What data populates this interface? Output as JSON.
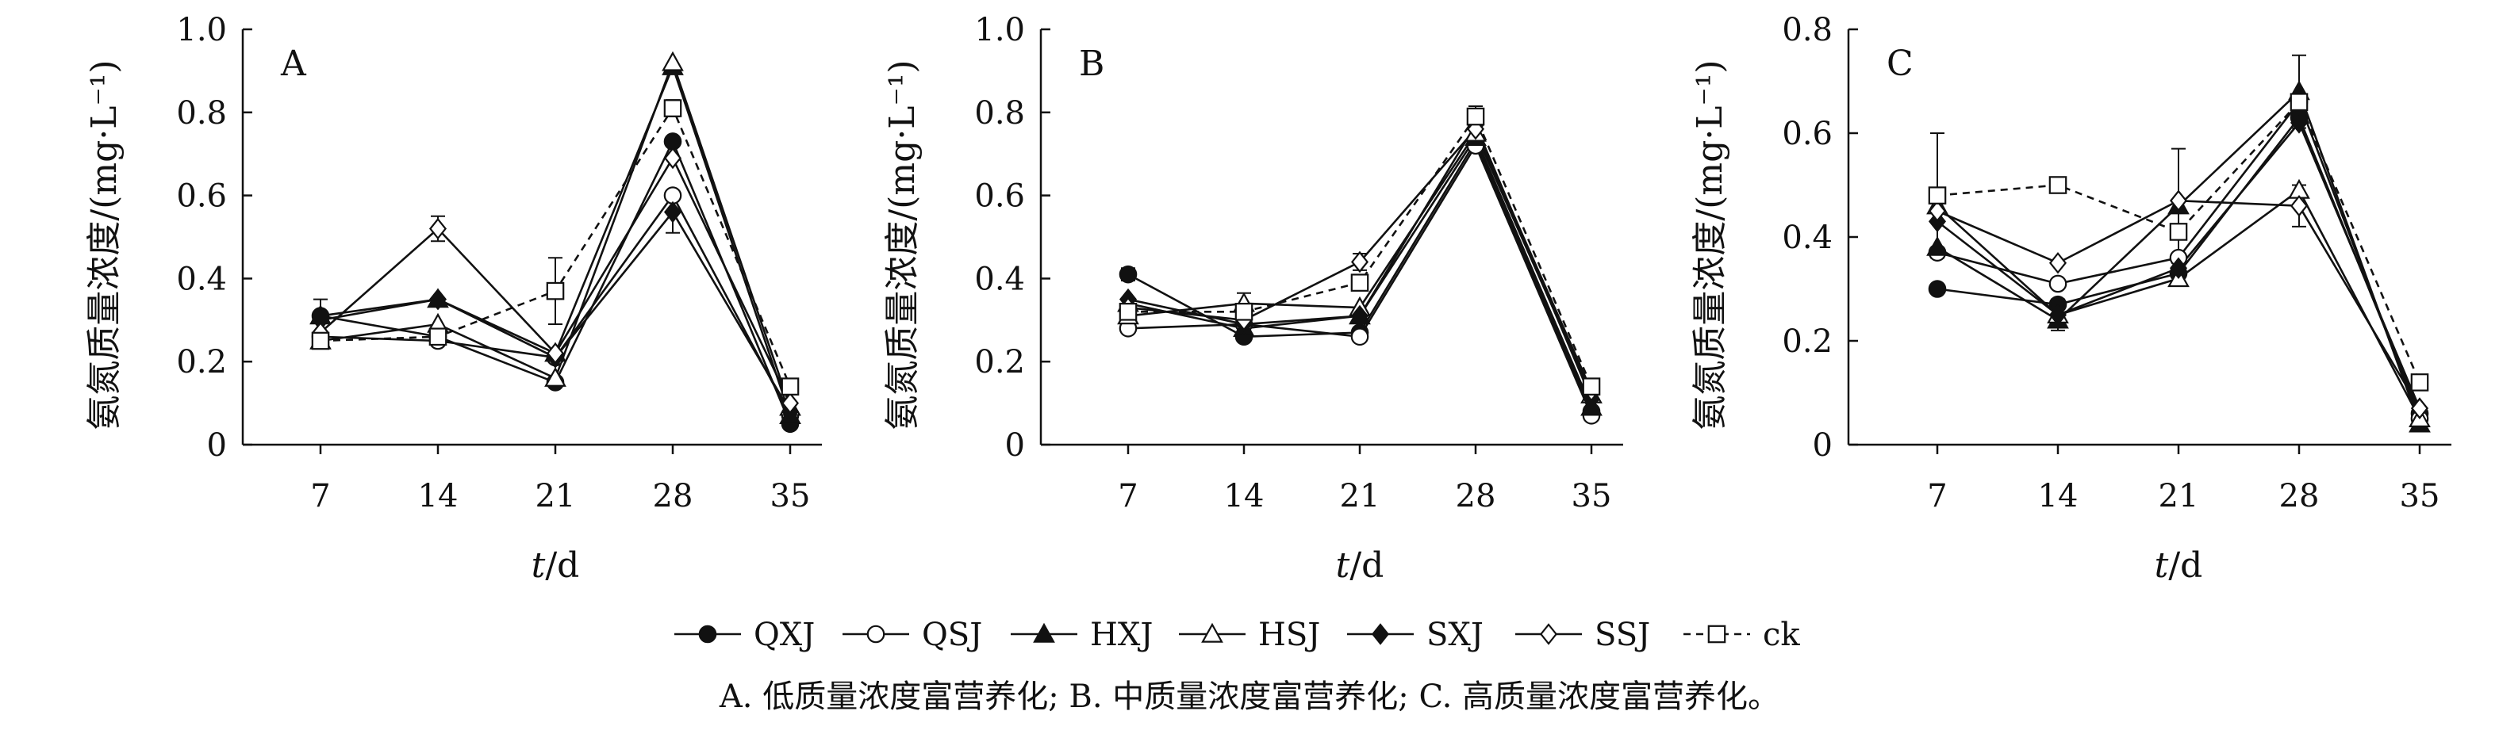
{
  "caption": "A. 低质量浓度富营养化; B. 中质量浓度富营养化; C. 高质量浓度富营养化。",
  "legend": [
    {
      "name": "QXJ",
      "marker": "circle",
      "fill": "#111111",
      "dash": false
    },
    {
      "name": "QSJ",
      "marker": "circle",
      "fill": "#ffffff",
      "dash": false
    },
    {
      "name": "HXJ",
      "marker": "triangle",
      "fill": "#111111",
      "dash": false
    },
    {
      "name": "HSJ",
      "marker": "triangle",
      "fill": "#ffffff",
      "dash": false
    },
    {
      "name": "SXJ",
      "marker": "diamond",
      "fill": "#111111",
      "dash": false
    },
    {
      "name": "SSJ",
      "marker": "diamond",
      "fill": "#ffffff",
      "dash": false
    },
    {
      "name": "ck",
      "marker": "square",
      "fill": "#ffffff",
      "dash": true
    }
  ],
  "chart_data": [
    {
      "type": "line",
      "panel_label": "A",
      "ylabel": "氨氮质量浓度/(mg·L⁻¹)",
      "xlabel_italic": "t",
      "xlabel_rest": "/d",
      "x": [
        7,
        14,
        21,
        28,
        35
      ],
      "ylim": [
        0,
        1.0
      ],
      "yticks": [
        0,
        0.2,
        0.4,
        0.6,
        0.8,
        1.0
      ],
      "ytick_labels": [
        "0",
        "0.2",
        "0.4",
        "0.6",
        "0.8",
        "1.0"
      ],
      "series": [
        {
          "name": "QXJ",
          "values": [
            0.31,
            0.26,
            0.15,
            0.73,
            0.05
          ]
        },
        {
          "name": "QSJ",
          "values": [
            0.26,
            0.25,
            0.21,
            0.6,
            0.07
          ]
        },
        {
          "name": "HXJ",
          "values": [
            0.31,
            0.35,
            0.22,
            0.91,
            0.07
          ]
        },
        {
          "name": "HSJ",
          "values": [
            0.25,
            0.29,
            0.16,
            0.92,
            0.09
          ]
        },
        {
          "name": "SXJ",
          "values": [
            0.3,
            0.35,
            0.21,
            0.56,
            0.08
          ]
        },
        {
          "name": "SSJ",
          "values": [
            0.27,
            0.52,
            0.22,
            0.69,
            0.1
          ]
        },
        {
          "name": "ck",
          "values": [
            0.25,
            0.26,
            0.37,
            0.81,
            0.14
          ]
        }
      ],
      "error_bars": [
        {
          "x": 7,
          "y": 0.3,
          "err": 0.05
        },
        {
          "x": 14,
          "y": 0.52,
          "err": 0.03
        },
        {
          "x": 21,
          "y": 0.37,
          "err": 0.08
        },
        {
          "x": 28,
          "y": 0.56,
          "err": 0.05
        },
        {
          "x": 28,
          "y": 0.81,
          "err": 0.02
        }
      ]
    },
    {
      "type": "line",
      "panel_label": "B",
      "ylabel": "氨氮质量浓度/(mg·L⁻¹)",
      "xlabel_italic": "t",
      "xlabel_rest": "/d",
      "x": [
        7,
        14,
        21,
        28,
        35
      ],
      "ylim": [
        0,
        1.0
      ],
      "yticks": [
        0,
        0.2,
        0.4,
        0.6,
        0.8,
        1.0
      ],
      "ytick_labels": [
        "0",
        "0.2",
        "0.4",
        "0.6",
        "0.8",
        "1.0"
      ],
      "series": [
        {
          "name": "QXJ",
          "values": [
            0.41,
            0.26,
            0.27,
            0.73,
            0.08
          ]
        },
        {
          "name": "QSJ",
          "values": [
            0.28,
            0.29,
            0.26,
            0.72,
            0.07
          ]
        },
        {
          "name": "HXJ",
          "values": [
            0.34,
            0.28,
            0.31,
            0.74,
            0.09
          ]
        },
        {
          "name": "HSJ",
          "values": [
            0.31,
            0.34,
            0.33,
            0.75,
            0.12
          ]
        },
        {
          "name": "SXJ",
          "values": [
            0.35,
            0.29,
            0.31,
            0.77,
            0.11
          ]
        },
        {
          "name": "SSJ",
          "values": [
            0.33,
            0.3,
            0.44,
            0.76,
            0.13
          ]
        },
        {
          "name": "ck",
          "values": [
            0.32,
            0.32,
            0.39,
            0.79,
            0.14
          ]
        }
      ],
      "error_bars": [
        {
          "x": 7,
          "y": 0.41,
          "err": 0.015
        },
        {
          "x": 14,
          "y": 0.34,
          "err": 0.025
        },
        {
          "x": 21,
          "y": 0.44,
          "err": 0.02
        },
        {
          "x": 28,
          "y": 0.79,
          "err": 0.025
        },
        {
          "x": 35,
          "y": 0.14,
          "err": 0.01
        }
      ]
    },
    {
      "type": "line",
      "panel_label": "C",
      "ylabel": "氨氮质量浓度/(mg·L⁻¹)",
      "xlabel_italic": "t",
      "xlabel_rest": "/d",
      "x": [
        7,
        14,
        21,
        28,
        35
      ],
      "ylim": [
        0,
        0.8
      ],
      "yticks": [
        0,
        0.2,
        0.4,
        0.6,
        0.8
      ],
      "ytick_labels": [
        "0",
        "0.2",
        "0.4",
        "0.6",
        "0.8"
      ],
      "series": [
        {
          "name": "QXJ",
          "values": [
            0.3,
            0.27,
            0.33,
            0.63,
            0.06
          ]
        },
        {
          "name": "QSJ",
          "values": [
            0.37,
            0.31,
            0.36,
            0.66,
            0.05
          ]
        },
        {
          "name": "HXJ",
          "values": [
            0.38,
            0.24,
            0.46,
            0.68,
            0.04
          ]
        },
        {
          "name": "HSJ",
          "values": [
            0.46,
            0.25,
            0.32,
            0.49,
            0.05
          ]
        },
        {
          "name": "SXJ",
          "values": [
            0.43,
            0.25,
            0.34,
            0.62,
            0.07
          ]
        },
        {
          "name": "SSJ",
          "values": [
            0.45,
            0.35,
            0.47,
            0.46,
            0.07
          ]
        },
        {
          "name": "ck",
          "values": [
            0.48,
            0.5,
            0.41,
            0.66,
            0.12
          ]
        }
      ],
      "error_bars": [
        {
          "x": 7,
          "y": 0.48,
          "err": 0.12
        },
        {
          "x": 14,
          "y": 0.25,
          "err": 0.03
        },
        {
          "x": 21,
          "y": 0.46,
          "err": 0.11
        },
        {
          "x": 28,
          "y": 0.68,
          "err": 0.07
        },
        {
          "x": 28,
          "y": 0.46,
          "err": 0.04
        }
      ]
    }
  ]
}
